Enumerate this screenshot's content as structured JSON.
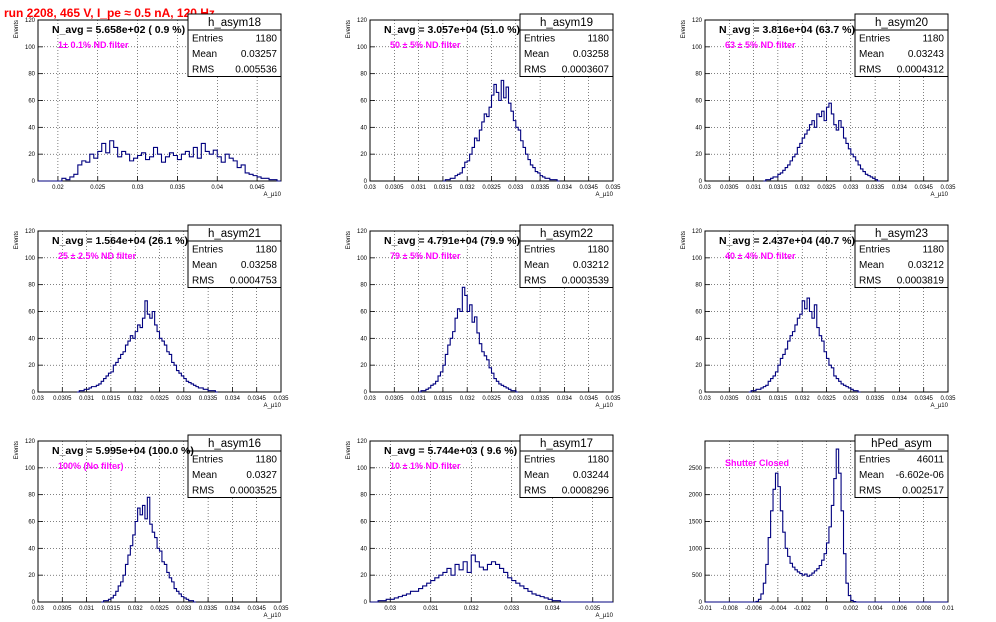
{
  "title": "run 2208,   465 V, I_pe ≈ 0.5 nA, 120 Hz",
  "colors": {
    "title": "#ff0000",
    "filter_label": "#ff00ff",
    "histogram": "#00007f",
    "grid": "#000000"
  },
  "chart_data": [
    {
      "type": "histogram",
      "name": "h_asym18",
      "annotation": "N_avg = 5.658e+02 ( 0.9 %)",
      "filter": "1± 0.1% ND filter",
      "stats": {
        "Entries": "1180",
        "Mean": "0.03257",
        "RMS": "0.005536"
      },
      "ylabel": "Events",
      "xlabel": "A_μ10",
      "xlim": [
        0.0175,
        0.048
      ],
      "ylim": [
        0,
        120
      ],
      "xticks": [
        0.02,
        0.025,
        0.03,
        0.035,
        0.04,
        0.045
      ],
      "xticklabels": [
        "0.02",
        "0.025",
        "0.03",
        "0.035",
        "0.04",
        "0.045"
      ],
      "yticks": [
        0,
        20,
        40,
        60,
        80,
        100,
        120
      ],
      "bin_start": 0.0175,
      "bin_width": 0.0005,
      "counts": [
        0,
        0,
        0,
        0,
        0,
        0,
        2,
        1,
        3,
        5,
        12,
        15,
        14,
        20,
        17,
        22,
        28,
        21,
        30,
        25,
        18,
        22,
        20,
        15,
        17,
        19,
        21,
        16,
        18,
        25,
        20,
        14,
        18,
        21,
        19,
        16,
        20,
        22,
        18,
        25,
        17,
        28,
        22,
        20,
        23,
        18,
        14,
        20,
        17,
        15,
        10,
        12,
        6,
        5,
        4,
        3,
        2,
        2,
        1,
        1,
        0
      ]
    },
    {
      "type": "histogram",
      "name": "h_asym19",
      "annotation": "N_avg = 3.057e+04 (51.0 %)",
      "filter": "50 ± 5% ND filter",
      "stats": {
        "Entries": "1180",
        "Mean": "0.03258",
        "RMS": "0.0003607"
      },
      "ylabel": "Events",
      "xlabel": "A_μ10",
      "xlim": [
        0.03,
        0.035
      ],
      "ylim": [
        0,
        120
      ],
      "xticks": [
        0.03,
        0.0305,
        0.031,
        0.0315,
        0.032,
        0.0325,
        0.033,
        0.0335,
        0.034,
        0.0345,
        0.035
      ],
      "xticklabels": [
        "0.03",
        "0.0305",
        "0.031",
        "0.0315",
        "0.032",
        "0.0325",
        "0.033",
        "0.0335",
        "0.034",
        "0.0345",
        "0.035"
      ],
      "yticks": [
        0,
        20,
        40,
        60,
        80,
        100,
        120
      ],
      "bin_start": 0.0315,
      "bin_width": 5e-05,
      "counts": [
        0,
        1,
        1,
        2,
        2,
        4,
        5,
        6,
        10,
        14,
        15,
        20,
        25,
        32,
        30,
        38,
        44,
        50,
        48,
        55,
        64,
        72,
        66,
        60,
        75,
        62,
        70,
        58,
        52,
        45,
        40,
        38,
        30,
        25,
        20,
        16,
        12,
        10,
        7,
        6,
        4,
        3,
        2,
        2,
        1,
        1,
        1,
        0
      ]
    },
    {
      "type": "histogram",
      "name": "h_asym20",
      "annotation": "N_avg = 3.816e+04 (63.7 %)",
      "filter": "63 ± 5% ND filter",
      "stats": {
        "Entries": "1180",
        "Mean": "0.03243",
        "RMS": "0.0004312"
      },
      "ylabel": "Events",
      "xlabel": "A_μ10",
      "xlim": [
        0.03,
        0.035
      ],
      "ylim": [
        0,
        120
      ],
      "xticks": [
        0.03,
        0.0305,
        0.031,
        0.0315,
        0.032,
        0.0325,
        0.033,
        0.0335,
        0.034,
        0.0345,
        0.035
      ],
      "xticklabels": [
        "0.03",
        "0.0305",
        "0.031",
        "0.0315",
        "0.032",
        "0.0325",
        "0.033",
        "0.0335",
        "0.034",
        "0.0345",
        "0.035"
      ],
      "yticks": [
        0,
        20,
        40,
        60,
        80,
        100,
        120
      ],
      "bin_start": 0.0312,
      "bin_width": 5e-05,
      "counts": [
        0,
        1,
        1,
        2,
        3,
        3,
        5,
        6,
        8,
        10,
        12,
        15,
        18,
        20,
        25,
        28,
        32,
        35,
        38,
        42,
        45,
        40,
        50,
        48,
        52,
        45,
        55,
        58,
        50,
        42,
        38,
        45,
        40,
        32,
        28,
        24,
        20,
        18,
        15,
        12,
        9,
        7,
        5,
        4,
        3,
        2,
        1,
        0
      ]
    },
    {
      "type": "histogram",
      "name": "h_asym21",
      "annotation": "N_avg = 1.564e+04 (26.1 %)",
      "filter": "25 ± 2.5% ND filter",
      "stats": {
        "Entries": "1180",
        "Mean": "0.03258",
        "RMS": "0.0004753"
      },
      "ylabel": "Events",
      "xlabel": "A_μ10",
      "xlim": [
        0.03,
        0.035
      ],
      "ylim": [
        0,
        120
      ],
      "xticks": [
        0.03,
        0.0305,
        0.031,
        0.0315,
        0.032,
        0.0325,
        0.033,
        0.0335,
        0.034,
        0.0345,
        0.035
      ],
      "xticklabels": [
        "0.03",
        "0.0305",
        "0.031",
        "0.0315",
        "0.032",
        "0.0325",
        "0.033",
        "0.0335",
        "0.034",
        "0.0345",
        "0.035"
      ],
      "yticks": [
        0,
        20,
        40,
        60,
        80,
        100,
        120
      ],
      "bin_start": 0.0308,
      "bin_width": 5e-05,
      "counts": [
        0,
        1,
        1,
        2,
        2,
        3,
        4,
        4,
        5,
        6,
        8,
        10,
        12,
        14,
        15,
        20,
        22,
        25,
        28,
        30,
        35,
        38,
        42,
        40,
        45,
        50,
        48,
        55,
        68,
        58,
        55,
        60,
        50,
        45,
        40,
        38,
        35,
        30,
        28,
        22,
        20,
        16,
        14,
        12,
        10,
        8,
        7,
        6,
        5,
        4,
        3,
        3,
        2,
        2,
        1,
        1,
        1,
        0
      ]
    },
    {
      "type": "histogram",
      "name": "h_asym22",
      "annotation": "N_avg = 4.791e+04 (79.9 %)",
      "filter": "79 ± 5% ND filter",
      "stats": {
        "Entries": "1180",
        "Mean": "0.03212",
        "RMS": "0.0003539"
      },
      "ylabel": "Events",
      "xlabel": "A_μ10",
      "xlim": [
        0.03,
        0.035
      ],
      "ylim": [
        0,
        120
      ],
      "xticks": [
        0.03,
        0.0305,
        0.031,
        0.0315,
        0.032,
        0.0325,
        0.033,
        0.0335,
        0.034,
        0.0345,
        0.035
      ],
      "xticklabels": [
        "0.03",
        "0.0305",
        "0.031",
        "0.0315",
        "0.032",
        "0.0325",
        "0.033",
        "0.0335",
        "0.034",
        "0.0345",
        "0.035"
      ],
      "yticks": [
        0,
        20,
        40,
        60,
        80,
        100,
        120
      ],
      "bin_start": 0.031,
      "bin_width": 5e-05,
      "counts": [
        0,
        1,
        1,
        2,
        3,
        5,
        6,
        8,
        12,
        15,
        20,
        28,
        35,
        40,
        45,
        55,
        62,
        60,
        78,
        72,
        60,
        65,
        52,
        56,
        44,
        36,
        30,
        27,
        24,
        18,
        14,
        10,
        8,
        6,
        5,
        4,
        3,
        2,
        1,
        1,
        0
      ]
    },
    {
      "type": "histogram",
      "name": "h_asym23",
      "annotation": "N_avg = 2.437e+04 (40.7 %)",
      "filter": "40 ± 4% ND filter",
      "stats": {
        "Entries": "1180",
        "Mean": "0.03212",
        "RMS": "0.0003819"
      },
      "ylabel": "Events",
      "xlabel": "A_μ10",
      "xlim": [
        0.03,
        0.035
      ],
      "ylim": [
        0,
        120
      ],
      "xticks": [
        0.03,
        0.0305,
        0.031,
        0.0315,
        0.032,
        0.0325,
        0.033,
        0.0335,
        0.034,
        0.0345,
        0.035
      ],
      "xticklabels": [
        "0.03",
        "0.0305",
        "0.031",
        "0.0315",
        "0.032",
        "0.0325",
        "0.033",
        "0.0335",
        "0.034",
        "0.0345",
        "0.035"
      ],
      "yticks": [
        0,
        20,
        40,
        60,
        80,
        100,
        120
      ],
      "bin_start": 0.0309,
      "bin_width": 5e-05,
      "counts": [
        0,
        1,
        1,
        2,
        2,
        3,
        4,
        5,
        8,
        10,
        12,
        15,
        20,
        25,
        28,
        32,
        38,
        42,
        45,
        50,
        55,
        58,
        68,
        62,
        70,
        60,
        55,
        65,
        48,
        42,
        38,
        30,
        25,
        20,
        18,
        12,
        10,
        8,
        6,
        5,
        4,
        3,
        2,
        1,
        1,
        0
      ]
    },
    {
      "type": "histogram",
      "name": "h_asym16",
      "annotation": "N_avg = 5.995e+04 (100.0 %)",
      "filter": "100% (No filter)",
      "stats": {
        "Entries": "1180",
        "Mean": "0.0327",
        "RMS": "0.0003525"
      },
      "ylabel": "Events",
      "xlabel": "A_μ10",
      "xlim": [
        0.03,
        0.035
      ],
      "ylim": [
        0,
        120
      ],
      "xticks": [
        0.03,
        0.0305,
        0.031,
        0.0315,
        0.032,
        0.0325,
        0.033,
        0.0335,
        0.034,
        0.0345,
        0.035
      ],
      "xticklabels": [
        "0.03",
        "0.0305",
        "0.031",
        "0.0315",
        "0.032",
        "0.0325",
        "0.033",
        "0.0335",
        "0.034",
        "0.0345",
        "0.035"
      ],
      "yticks": [
        0,
        20,
        40,
        60,
        80,
        100,
        120
      ],
      "bin_start": 0.0313,
      "bin_width": 5e-05,
      "counts": [
        0,
        1,
        1,
        2,
        3,
        5,
        8,
        12,
        15,
        20,
        28,
        35,
        42,
        50,
        60,
        70,
        65,
        72,
        62,
        78,
        58,
        52,
        48,
        40,
        38,
        30,
        28,
        22,
        18,
        15,
        10,
        8,
        6,
        4,
        3,
        2,
        1,
        1,
        0
      ]
    },
    {
      "type": "histogram",
      "name": "h_asym17",
      "annotation": "N_avg = 5.744e+03 ( 9.6 %)",
      "filter": "10 ± 1% ND filter",
      "stats": {
        "Entries": "1180",
        "Mean": "0.03244",
        "RMS": "0.0008296"
      },
      "ylabel": "Events",
      "xlabel": "A_μ10",
      "xlim": [
        0.0295,
        0.0355
      ],
      "ylim": [
        0,
        120
      ],
      "xticks": [
        0.03,
        0.031,
        0.032,
        0.033,
        0.034,
        0.035
      ],
      "xticklabels": [
        "0.03",
        "0.031",
        "0.032",
        "0.033",
        "0.034",
        "0.035"
      ],
      "yticks": [
        0,
        20,
        40,
        60,
        80,
        100,
        120
      ],
      "bin_start": 0.0295,
      "bin_width": 0.0001,
      "counts": [
        0,
        0,
        1,
        1,
        2,
        2,
        3,
        4,
        5,
        6,
        8,
        8,
        10,
        12,
        14,
        16,
        18,
        20,
        22,
        25,
        20,
        28,
        24,
        30,
        22,
        35,
        30,
        26,
        24,
        28,
        30,
        28,
        25,
        22,
        18,
        16,
        14,
        12,
        10,
        8,
        6,
        5,
        4,
        3,
        2,
        1,
        1,
        0,
        0,
        0,
        0,
        0,
        0,
        0,
        0,
        0,
        0,
        0,
        0,
        0
      ]
    },
    {
      "type": "histogram",
      "name": "hPed_asym",
      "annotation": "",
      "filter": "Shutter Closed",
      "stats": {
        "Entries": "46011",
        "Mean": "-6.602e-06",
        "RMS": "0.002517"
      },
      "ylabel": "",
      "xlabel": "",
      "xlim": [
        -0.01,
        0.01
      ],
      "ylim": [
        0,
        3000
      ],
      "xticks": [
        -0.01,
        -0.008,
        -0.006,
        -0.004,
        -0.002,
        0,
        0.002,
        0.004,
        0.006,
        0.008,
        0.01
      ],
      "xticklabels": [
        "-0.01",
        "-0.008",
        "-0.006",
        "-0.004",
        "-0.002",
        "0",
        "0.002",
        "0.004",
        "0.006",
        "0.008",
        "0.01"
      ],
      "yticks": [
        0,
        500,
        1000,
        1500,
        2000,
        2500
      ],
      "bin_start": -0.01,
      "bin_width": 0.0002,
      "counts": [
        0,
        0,
        0,
        0,
        0,
        0,
        0,
        0,
        0,
        0,
        0,
        0,
        0,
        0,
        0,
        0,
        0,
        0,
        0,
        0,
        0,
        10,
        50,
        150,
        350,
        700,
        1200,
        1700,
        2100,
        2400,
        2150,
        1700,
        1300,
        1000,
        850,
        720,
        650,
        600,
        560,
        530,
        500,
        520,
        480,
        500,
        540,
        580,
        620,
        680,
        780,
        900,
        1100,
        1400,
        1800,
        2300,
        2850,
        2400,
        1700,
        900,
        350,
        120,
        30,
        8,
        0,
        0,
        0,
        0,
        0,
        0,
        0,
        0,
        0,
        0,
        0,
        0,
        0,
        0,
        0,
        0,
        0,
        0,
        0,
        0,
        0,
        0,
        0,
        0,
        0,
        0,
        0,
        0,
        0,
        0,
        0,
        0,
        0,
        0,
        0,
        0,
        0,
        0
      ]
    }
  ]
}
